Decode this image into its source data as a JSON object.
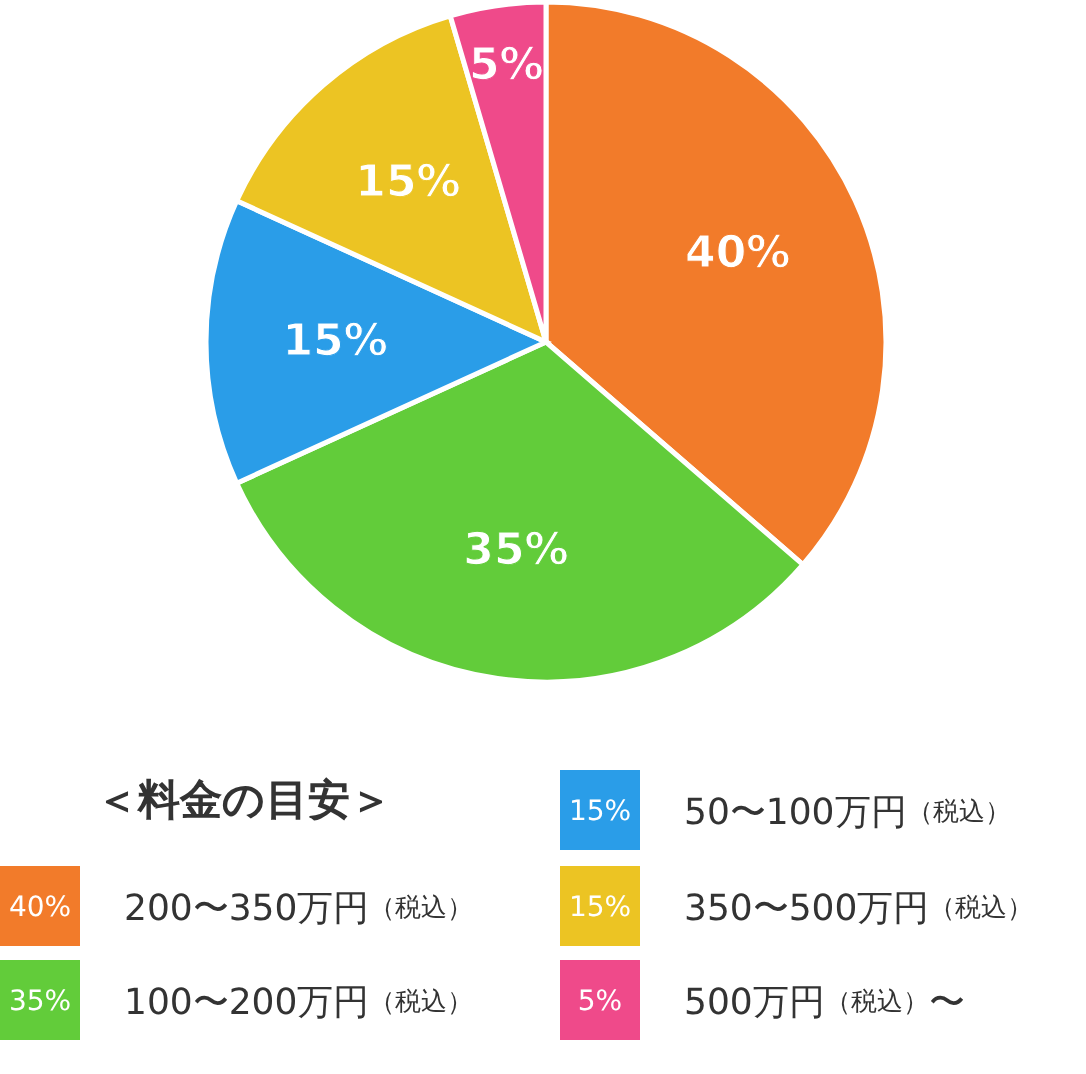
{
  "chart_data": {
    "type": "pie",
    "legend_title": "＜料金の目安＞",
    "legend": "bottom",
    "categories": [
      "200〜350万円（税込）",
      "100〜200万円（税込）",
      "50〜100万円（税込）",
      "350〜500万円（税込）",
      "500万円（税込）〜"
    ],
    "values": [
      40,
      35,
      15,
      15,
      5
    ],
    "value_labels": [
      "40%",
      "35%",
      "15%",
      "15%",
      "5%"
    ],
    "colors": [
      "#f27b2a",
      "#62cc3a",
      "#2a9de8",
      "#ecc423",
      "#ef4a8a"
    ]
  }
}
